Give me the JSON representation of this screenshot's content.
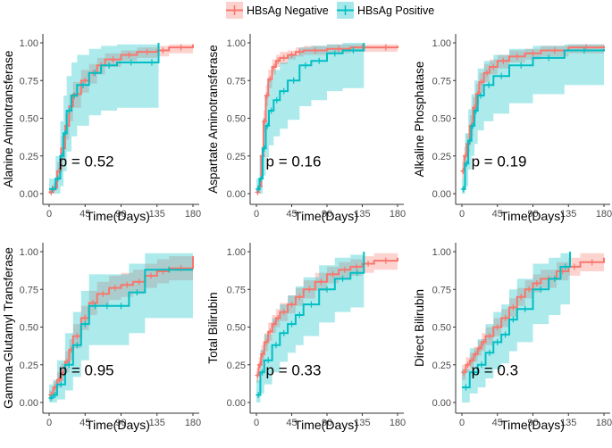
{
  "legend": {
    "items": [
      {
        "label": "HBsAg Negative",
        "color": "#F8766D"
      },
      {
        "label": "HBsAg Positive",
        "color": "#00BFC4"
      }
    ]
  },
  "chart_data": [
    {
      "type": "line",
      "title": "",
      "ylabel": "Alanine Aminotransferase",
      "xlabel": "Time(Days)",
      "xlim": [
        0,
        180
      ],
      "ylim": [
        0,
        1
      ],
      "xticks": [
        "0",
        "45",
        "90",
        "135",
        "180"
      ],
      "yticks": [
        "0.00",
        "0.25",
        "0.50",
        "0.75",
        "1.00"
      ],
      "annotation": "p = 0.52",
      "series": [
        {
          "name": "HBsAg Negative",
          "color": "#F8766D",
          "x": [
            0,
            5,
            10,
            15,
            20,
            25,
            30,
            40,
            50,
            60,
            70,
            90,
            110,
            135,
            150,
            180
          ],
          "y": [
            0.01,
            0.04,
            0.15,
            0.3,
            0.45,
            0.58,
            0.66,
            0.75,
            0.8,
            0.85,
            0.89,
            0.92,
            0.94,
            0.95,
            0.97,
            0.99
          ],
          "lower": [
            0.0,
            0.02,
            0.09,
            0.22,
            0.36,
            0.48,
            0.57,
            0.67,
            0.73,
            0.79,
            0.84,
            0.88,
            0.9,
            0.91,
            0.93,
            0.95
          ],
          "upper": [
            0.03,
            0.07,
            0.21,
            0.38,
            0.53,
            0.66,
            0.74,
            0.82,
            0.86,
            0.9,
            0.93,
            0.95,
            0.97,
            0.98,
            0.99,
            1.0
          ]
        },
        {
          "name": "HBsAg Positive",
          "color": "#00BFC4",
          "x": [
            0,
            8,
            14,
            18,
            22,
            28,
            35,
            50,
            65,
            85,
            120,
            137
          ],
          "y": [
            0.03,
            0.1,
            0.25,
            0.4,
            0.55,
            0.65,
            0.72,
            0.8,
            0.85,
            0.87,
            0.87,
            1.0
          ],
          "lower": [
            0.0,
            0.0,
            0.05,
            0.15,
            0.28,
            0.38,
            0.45,
            0.52,
            0.55,
            0.57,
            0.57,
            0.57
          ],
          "upper": [
            0.1,
            0.25,
            0.48,
            0.65,
            0.78,
            0.87,
            0.92,
            0.96,
            0.98,
            0.99,
            0.99,
            1.0
          ]
        }
      ]
    },
    {
      "type": "line",
      "title": "",
      "ylabel": "Aspartate Aminotransferase",
      "xlabel": "Time(Days)",
      "xlim": [
        0,
        180
      ],
      "ylim": [
        0,
        1
      ],
      "xticks": [
        "0",
        "45",
        "90",
        "135",
        "180"
      ],
      "yticks": [
        "0.00",
        "0.25",
        "0.50",
        "0.75",
        "1.00"
      ],
      "annotation": "p = 0.16",
      "series": [
        {
          "name": "HBsAg Negative",
          "color": "#F8766D",
          "x": [
            0,
            3,
            6,
            9,
            12,
            15,
            20,
            25,
            30,
            40,
            50,
            60,
            90,
            120,
            150,
            180
          ],
          "y": [
            0.01,
            0.05,
            0.25,
            0.48,
            0.65,
            0.76,
            0.84,
            0.88,
            0.9,
            0.92,
            0.94,
            0.95,
            0.96,
            0.97,
            0.97,
            0.98
          ],
          "lower": [
            0.0,
            0.02,
            0.19,
            0.41,
            0.58,
            0.7,
            0.79,
            0.84,
            0.86,
            0.89,
            0.91,
            0.92,
            0.93,
            0.94,
            0.94,
            0.95
          ],
          "upper": [
            0.03,
            0.09,
            0.31,
            0.55,
            0.72,
            0.82,
            0.89,
            0.92,
            0.94,
            0.95,
            0.97,
            0.98,
            0.99,
            0.99,
            0.99,
            1.0
          ]
        },
        {
          "name": "HBsAg Positive",
          "color": "#00BFC4",
          "x": [
            0,
            4,
            8,
            12,
            16,
            22,
            30,
            40,
            55,
            70,
            90,
            110,
            137
          ],
          "y": [
            0.03,
            0.1,
            0.3,
            0.45,
            0.55,
            0.62,
            0.68,
            0.75,
            0.85,
            0.88,
            0.93,
            0.95,
            1.0
          ],
          "lower": [
            0.0,
            0.0,
            0.12,
            0.24,
            0.32,
            0.38,
            0.43,
            0.49,
            0.58,
            0.62,
            0.68,
            0.7,
            0.7
          ],
          "upper": [
            0.1,
            0.25,
            0.5,
            0.66,
            0.76,
            0.82,
            0.87,
            0.92,
            0.97,
            0.98,
            0.99,
            1.0,
            1.0
          ]
        }
      ]
    },
    {
      "type": "line",
      "title": "",
      "ylabel": "Alkaline Phosphatase",
      "xlabel": "Time(Days)",
      "xlim": [
        0,
        180
      ],
      "ylim": [
        0,
        1
      ],
      "xticks": [
        "0",
        "45",
        "90",
        "135",
        "180"
      ],
      "yticks": [
        "0.00",
        "0.25",
        "0.50",
        "0.75",
        "1.00"
      ],
      "annotation": "p = 0.19",
      "series": [
        {
          "name": "HBsAg Negative",
          "color": "#F8766D",
          "x": [
            0,
            3,
            6,
            10,
            14,
            18,
            22,
            28,
            35,
            45,
            60,
            80,
            100,
            135,
            180
          ],
          "y": [
            0.15,
            0.25,
            0.33,
            0.45,
            0.57,
            0.66,
            0.74,
            0.8,
            0.84,
            0.88,
            0.91,
            0.93,
            0.95,
            0.97,
            0.98
          ],
          "lower": [
            0.1,
            0.19,
            0.27,
            0.38,
            0.5,
            0.59,
            0.67,
            0.74,
            0.79,
            0.83,
            0.87,
            0.89,
            0.91,
            0.93,
            0.94
          ],
          "upper": [
            0.21,
            0.31,
            0.4,
            0.52,
            0.64,
            0.73,
            0.8,
            0.86,
            0.89,
            0.92,
            0.95,
            0.96,
            0.98,
            0.99,
            1.0
          ]
        },
        {
          "name": "HBsAg Positive",
          "color": "#00BFC4",
          "x": [
            0,
            4,
            8,
            12,
            16,
            20,
            28,
            40,
            60,
            90,
            130,
            180
          ],
          "y": [
            0.03,
            0.2,
            0.35,
            0.45,
            0.55,
            0.65,
            0.72,
            0.78,
            0.85,
            0.9,
            0.95,
            0.96
          ],
          "lower": [
            0.0,
            0.05,
            0.16,
            0.25,
            0.33,
            0.42,
            0.48,
            0.53,
            0.6,
            0.66,
            0.72,
            0.72
          ],
          "upper": [
            0.1,
            0.4,
            0.56,
            0.66,
            0.75,
            0.83,
            0.88,
            0.92,
            0.96,
            0.98,
            0.99,
            0.99
          ]
        }
      ]
    },
    {
      "type": "line",
      "title": "",
      "ylabel": "Gamma-Glutamyl Transferase",
      "xlabel": "Time(Days)",
      "xlim": [
        0,
        180
      ],
      "ylim": [
        0,
        1
      ],
      "xticks": [
        "0",
        "45",
        "90",
        "135",
        "180"
      ],
      "yticks": [
        "0.00",
        "0.25",
        "0.50",
        "0.75",
        "1.00"
      ],
      "annotation": "p = 0.95",
      "series": [
        {
          "name": "HBsAg Negative",
          "color": "#F8766D",
          "x": [
            0,
            5,
            10,
            15,
            20,
            25,
            30,
            40,
            50,
            60,
            75,
            90,
            105,
            120,
            135,
            150,
            180
          ],
          "y": [
            0.05,
            0.1,
            0.15,
            0.2,
            0.27,
            0.35,
            0.44,
            0.56,
            0.66,
            0.72,
            0.76,
            0.78,
            0.8,
            0.84,
            0.87,
            0.89,
            0.97
          ],
          "lower": [
            0.02,
            0.06,
            0.1,
            0.14,
            0.2,
            0.28,
            0.36,
            0.48,
            0.58,
            0.64,
            0.68,
            0.7,
            0.72,
            0.76,
            0.79,
            0.81,
            0.89
          ],
          "upper": [
            0.08,
            0.14,
            0.2,
            0.26,
            0.34,
            0.42,
            0.52,
            0.64,
            0.74,
            0.8,
            0.84,
            0.86,
            0.88,
            0.92,
            0.95,
            0.97,
            1.0
          ]
        },
        {
          "name": "HBsAg Positive",
          "color": "#00BFC4",
          "x": [
            0,
            5,
            10,
            20,
            30,
            40,
            50,
            65,
            80,
            100,
            120,
            180
          ],
          "y": [
            0.03,
            0.05,
            0.12,
            0.25,
            0.38,
            0.52,
            0.64,
            0.64,
            0.64,
            0.73,
            0.88,
            0.88
          ],
          "lower": [
            0.0,
            0.0,
            0.02,
            0.08,
            0.17,
            0.28,
            0.38,
            0.38,
            0.38,
            0.46,
            0.56,
            0.56
          ],
          "upper": [
            0.12,
            0.15,
            0.28,
            0.46,
            0.6,
            0.74,
            0.85,
            0.85,
            0.85,
            0.92,
            0.99,
            0.99
          ]
        }
      ]
    },
    {
      "type": "line",
      "title": "",
      "ylabel": "Total Bilirubin",
      "xlabel": "Time(Days)",
      "xlim": [
        0,
        180
      ],
      "ylim": [
        0,
        1
      ],
      "xticks": [
        "0",
        "45",
        "90",
        "135",
        "180"
      ],
      "yticks": [
        "0.00",
        "0.25",
        "0.50",
        "0.75",
        "1.00"
      ],
      "annotation": "p = 0.33",
      "series": [
        {
          "name": "HBsAg Negative",
          "color": "#F8766D",
          "x": [
            0,
            3,
            6,
            10,
            15,
            20,
            25,
            30,
            40,
            50,
            60,
            75,
            90,
            105,
            120,
            135,
            150,
            180
          ],
          "y": [
            0.18,
            0.25,
            0.32,
            0.4,
            0.47,
            0.52,
            0.56,
            0.6,
            0.65,
            0.7,
            0.75,
            0.8,
            0.85,
            0.88,
            0.9,
            0.92,
            0.94,
            0.96
          ],
          "lower": [
            0.13,
            0.2,
            0.26,
            0.34,
            0.41,
            0.46,
            0.5,
            0.54,
            0.59,
            0.64,
            0.69,
            0.74,
            0.79,
            0.82,
            0.84,
            0.86,
            0.88,
            0.9
          ],
          "upper": [
            0.23,
            0.3,
            0.38,
            0.46,
            0.53,
            0.58,
            0.62,
            0.66,
            0.71,
            0.76,
            0.81,
            0.86,
            0.9,
            0.93,
            0.95,
            0.97,
            0.99,
            1.0
          ]
        },
        {
          "name": "HBsAg Positive",
          "color": "#00BFC4",
          "x": [
            0,
            5,
            10,
            20,
            30,
            40,
            50,
            60,
            80,
            100,
            120,
            137
          ],
          "y": [
            0.05,
            0.2,
            0.28,
            0.38,
            0.46,
            0.52,
            0.58,
            0.65,
            0.75,
            0.82,
            0.86,
            1.0
          ],
          "lower": [
            0.0,
            0.06,
            0.12,
            0.2,
            0.27,
            0.33,
            0.38,
            0.44,
            0.53,
            0.6,
            0.63,
            0.63
          ],
          "upper": [
            0.15,
            0.35,
            0.45,
            0.56,
            0.65,
            0.71,
            0.77,
            0.83,
            0.91,
            0.96,
            0.98,
            1.0
          ]
        }
      ]
    },
    {
      "type": "line",
      "title": "",
      "ylabel": "Direct Bilirubin",
      "xlabel": "Time(Days)",
      "xlim": [
        0,
        180
      ],
      "ylim": [
        0,
        1
      ],
      "xticks": [
        "0",
        "45",
        "90",
        "135",
        "180"
      ],
      "yticks": [
        "0.00",
        "0.25",
        "0.50",
        "0.75",
        "1.00"
      ],
      "annotation": "p = 0.3",
      "series": [
        {
          "name": "HBsAg Negative",
          "color": "#F8766D",
          "x": [
            0,
            5,
            10,
            15,
            20,
            25,
            30,
            40,
            50,
            60,
            70,
            80,
            90,
            100,
            120,
            135,
            150,
            180
          ],
          "y": [
            0.2,
            0.25,
            0.28,
            0.32,
            0.36,
            0.4,
            0.44,
            0.5,
            0.56,
            0.63,
            0.7,
            0.75,
            0.79,
            0.82,
            0.87,
            0.9,
            0.93,
            0.96
          ],
          "lower": [
            0.15,
            0.2,
            0.23,
            0.27,
            0.31,
            0.34,
            0.38,
            0.44,
            0.5,
            0.57,
            0.64,
            0.69,
            0.73,
            0.76,
            0.81,
            0.84,
            0.87,
            0.9
          ],
          "upper": [
            0.25,
            0.3,
            0.33,
            0.37,
            0.41,
            0.46,
            0.5,
            0.56,
            0.62,
            0.69,
            0.76,
            0.81,
            0.85,
            0.88,
            0.93,
            0.96,
            0.99,
            1.0
          ]
        },
        {
          "name": "HBsAg Positive",
          "color": "#00BFC4",
          "x": [
            0,
            10,
            20,
            30,
            40,
            50,
            60,
            70,
            90,
            110,
            125,
            137
          ],
          "y": [
            0.1,
            0.2,
            0.25,
            0.33,
            0.4,
            0.45,
            0.55,
            0.62,
            0.75,
            0.82,
            0.9,
            1.0
          ],
          "lower": [
            0.0,
            0.06,
            0.1,
            0.16,
            0.22,
            0.26,
            0.34,
            0.4,
            0.52,
            0.58,
            0.65,
            0.65
          ],
          "upper": [
            0.22,
            0.36,
            0.42,
            0.52,
            0.6,
            0.65,
            0.75,
            0.82,
            0.92,
            0.96,
            0.99,
            1.0
          ]
        }
      ]
    }
  ]
}
